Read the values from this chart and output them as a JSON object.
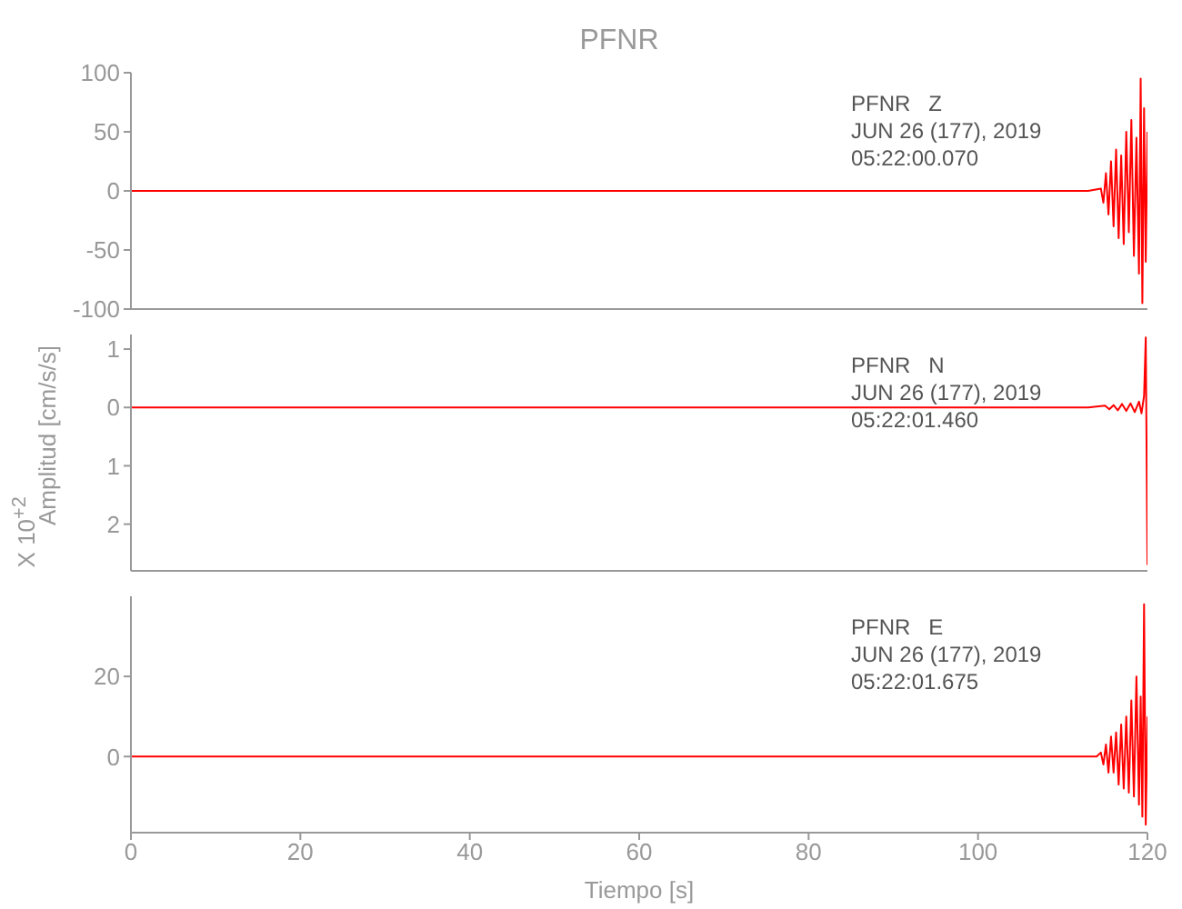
{
  "chart_data": [
    {
      "type": "line",
      "title": "PFNR",
      "annotations": [
        "PFNR   Z",
        "JUN 26 (177), 2019",
        "05:22:00.070"
      ],
      "marker": "none",
      "tick_labels": "y",
      "grid": false,
      "legend": false,
      "x": [
        0,
        113,
        114.5,
        114.8,
        115.1,
        115.4,
        115.7,
        116,
        116.3,
        116.6,
        116.9,
        117.2,
        117.5,
        117.8,
        118.1,
        118.4,
        118.7,
        119,
        119.2,
        119.4,
        119.6,
        119.8,
        120
      ],
      "series": [
        {
          "color": "#ff0000",
          "values": [
            0,
            0,
            2,
            -10,
            15,
            -20,
            25,
            -30,
            35,
            -40,
            30,
            -45,
            50,
            -35,
            60,
            -55,
            45,
            -70,
            95,
            -95,
            70,
            -60,
            50
          ]
        }
      ],
      "xlim": [
        0,
        120
      ],
      "xticks": [
        0,
        20,
        40,
        60,
        80,
        100,
        120
      ],
      "ylim": [
        -100,
        100
      ],
      "yticks": [
        -100,
        -50,
        0,
        50,
        100
      ]
    },
    {
      "type": "line",
      "ylabel": "Amplitud [cm/s/s]",
      "annotations": [
        "PFNR   N",
        "JUN 26 (177), 2019",
        "05:22:01.460",
        "X 10$^{+2}$"
      ],
      "marker": "none",
      "tick_labels": "y",
      "grid": false,
      "legend": false,
      "x": [
        0,
        113,
        115,
        115.5,
        116,
        116.5,
        117,
        117.5,
        118,
        118.5,
        119,
        119.3,
        119.6,
        119.8,
        120
      ],
      "series": [
        {
          "color": "#ff0000",
          "values": [
            0,
            0,
            0.03,
            -0.03,
            0.04,
            -0.05,
            0.06,
            -0.06,
            0.07,
            -0.08,
            0.1,
            -0.1,
            0.2,
            1.2,
            -2.7
          ]
        }
      ],
      "xlim": [
        0,
        120
      ],
      "xticks": [
        0,
        20,
        40,
        60,
        80,
        100,
        120
      ],
      "ylim": [
        -2.8,
        1.25
      ],
      "yticks": [
        {
          "value": -2,
          "label": "2"
        },
        {
          "value": -1,
          "label": "1"
        },
        0,
        1
      ]
    },
    {
      "type": "line",
      "xlabel": "Tiempo [s]",
      "annotations": [
        "PFNR   E",
        "JUN 26 (177), 2019",
        "05:22:01.675"
      ],
      "marker": "none",
      "grid": false,
      "legend": false,
      "x": [
        0,
        114,
        114.5,
        114.8,
        115.1,
        115.4,
        115.7,
        116,
        116.3,
        116.6,
        116.9,
        117.2,
        117.5,
        117.8,
        118.1,
        118.4,
        118.7,
        119,
        119.2,
        119.4,
        119.6,
        119.8,
        120
      ],
      "series": [
        {
          "color": "#ff0000",
          "values": [
            0,
            0,
            1,
            -2,
            3,
            -4,
            5,
            -4,
            6,
            -7,
            8,
            -8,
            10,
            -9,
            14,
            -10,
            20,
            -12,
            15,
            -15,
            38,
            -17,
            10
          ]
        }
      ],
      "xlim": [
        0,
        120
      ],
      "xticks": [
        0,
        20,
        40,
        60,
        80,
        100,
        120
      ],
      "ylim": [
        -19,
        40
      ],
      "yticks": [
        0,
        20
      ]
    }
  ]
}
